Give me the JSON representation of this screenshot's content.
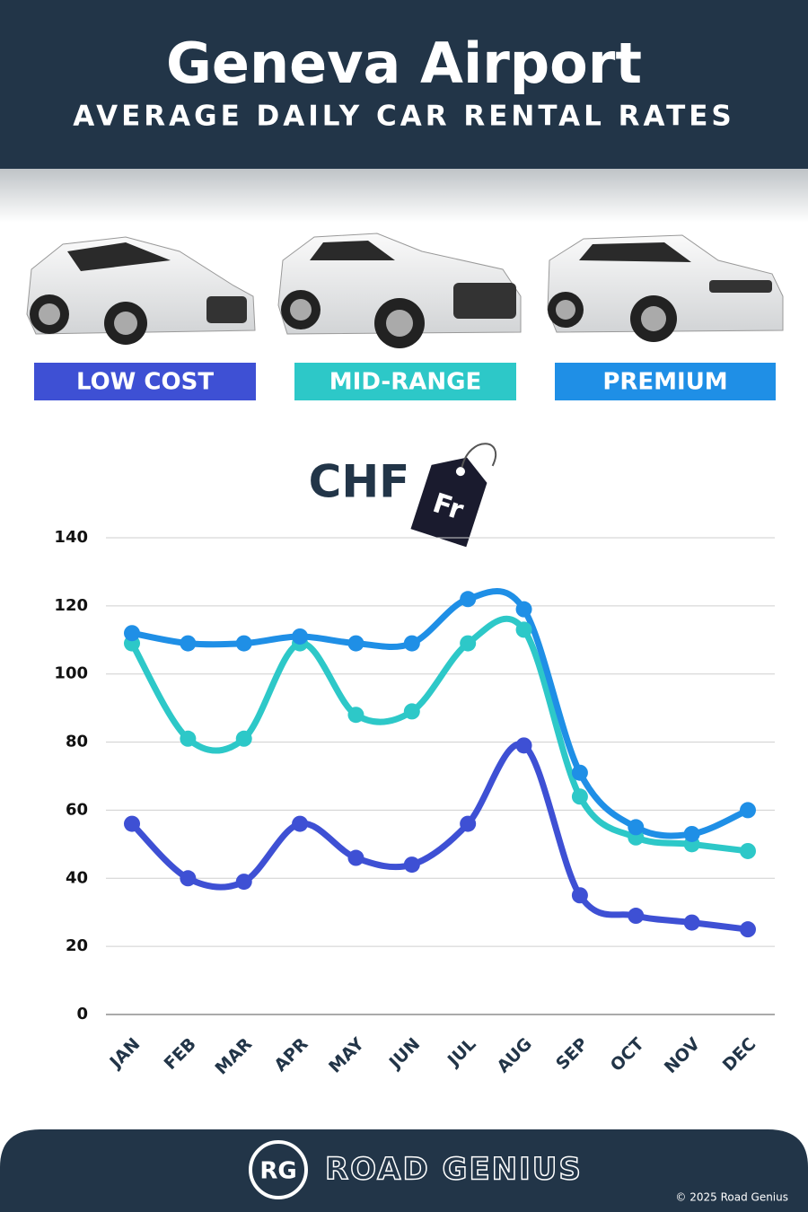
{
  "chart_data": {
    "type": "line",
    "title": "Geneva Airport",
    "subtitle": "AVERAGE DAILY CAR RENTAL RATES",
    "currency_label": "CHF",
    "currency_tag": "Fr",
    "categories": [
      "JAN",
      "FEB",
      "MAR",
      "APR",
      "MAY",
      "JUN",
      "JUL",
      "AUG",
      "SEP",
      "OCT",
      "NOV",
      "DEC"
    ],
    "series": [
      {
        "name": "LOW COST",
        "color": "#3e50d4",
        "values": [
          56,
          40,
          39,
          56,
          46,
          44,
          56,
          79,
          35,
          29,
          27,
          25
        ]
      },
      {
        "name": "MID-RANGE",
        "color": "#2dc8c8",
        "values": [
          109,
          81,
          81,
          109,
          88,
          89,
          109,
          113,
          64,
          52,
          50,
          48
        ]
      },
      {
        "name": "PREMIUM",
        "color": "#1f8fe6",
        "values": [
          112,
          109,
          109,
          111,
          109,
          109,
          122,
          119,
          71,
          55,
          53,
          60
        ]
      }
    ],
    "ylim": [
      0,
      140
    ],
    "yticks": [
      0,
      20,
      40,
      60,
      80,
      100,
      120,
      140
    ],
    "grid": true,
    "smooth": true,
    "markers": true,
    "legend": "top"
  },
  "footer": {
    "logo": "RG",
    "brand": "ROAD GENIUS",
    "copyright": "© 2025 Road Genius"
  }
}
